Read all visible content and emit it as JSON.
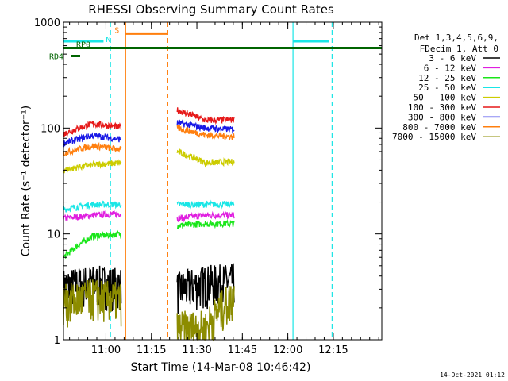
{
  "chart_data": {
    "type": "line",
    "title": "RHESSI Observing Summary Count Rates",
    "xlabel": "Start Time (14-Mar-08 10:46:42)",
    "ylabel": "Count Rate (s⁻¹ detector⁻¹)",
    "yscale": "log",
    "ylim": [
      1,
      1000
    ],
    "xlim_minutes": [
      0,
      105
    ],
    "x_ticks": [
      {
        "m": 14,
        "label": "11:00"
      },
      {
        "m": 29,
        "label": "11:15"
      },
      {
        "m": 44,
        "label": "11:30"
      },
      {
        "m": 59,
        "label": "11:45"
      },
      {
        "m": 74,
        "label": "12:00"
      },
      {
        "m": 89,
        "label": "12:15"
      }
    ],
    "y_ticks": [
      {
        "v": 1,
        "label": "1"
      },
      {
        "v": 10,
        "label": "10"
      },
      {
        "v": 100,
        "label": "100"
      },
      {
        "v": 1000,
        "label": "1000"
      }
    ],
    "legend_header": [
      "Det 1,3,4,5,6,9,",
      "FDecim 1, Att 0"
    ],
    "legend_position": "right",
    "series": [
      {
        "name": "3 - 6 keV",
        "color": "#000000",
        "a": [
          3.2,
          3.5,
          3.3
        ],
        "b": [
          3.0,
          3.5,
          3.6
        ]
      },
      {
        "name": "6 - 12 keV",
        "color": "#e01ee0",
        "a": [
          14,
          15,
          15.5
        ],
        "b": [
          14,
          15,
          15
        ]
      },
      {
        "name": "12 - 25 keV",
        "color": "#19e619",
        "a": [
          6,
          9.5,
          10
        ],
        "b": [
          12,
          12.5,
          12.5
        ]
      },
      {
        "name": "25 - 50 keV",
        "color": "#19e6e6",
        "a": [
          17,
          19,
          19
        ],
        "b": [
          19,
          19,
          19
        ]
      },
      {
        "name": "50 - 100 keV",
        "color": "#cccc00",
        "a": [
          40,
          45,
          47
        ],
        "b": [
          60,
          47,
          48
        ]
      },
      {
        "name": "100 - 300 keV",
        "color": "#e61919",
        "a": [
          88,
          110,
          102
        ],
        "b": [
          148,
          118,
          120
        ]
      },
      {
        "name": "300 - 800 keV",
        "color": "#1919e6",
        "a": [
          72,
          85,
          78
        ],
        "b": [
          112,
          100,
          97
        ]
      },
      {
        "name": "800 - 7000 keV",
        "color": "#ff7f0e",
        "a": [
          58,
          68,
          63
        ],
        "b": [
          100,
          86,
          83
        ]
      },
      {
        "name": "7000 - 15000 keV",
        "color": "#8c8c00",
        "a": [
          2.3,
          2.6,
          2.4
        ],
        "b": [
          1.3,
          1.3,
          2.6
        ]
      }
    ],
    "segments_minutes": {
      "a": [
        0,
        19
      ],
      "b": [
        37.5,
        56.3
      ]
    },
    "flags": {
      "saa": {
        "label": "S",
        "color": "#ff7f0e",
        "x": [
          20.5,
          34.4
        ],
        "y": 780
      },
      "night": {
        "label": "N",
        "color": "#19e6e6",
        "x": [
          [
            0,
            13.2
          ],
          [
            75.7,
            87.7
          ]
        ],
        "y": 660
      },
      "rp0": {
        "label": "RP0",
        "color": "#006400",
        "x": [
          0,
          105
        ],
        "y": 570
      },
      "rd4": {
        "label": "RD4",
        "color": "#006400",
        "x": [
          2.5,
          5.5
        ],
        "y": 480
      }
    },
    "vlines": [
      {
        "m": 15.5,
        "color": "#19e6e6",
        "style": "dashed"
      },
      {
        "m": 20.5,
        "color": "#ff7f0e",
        "style": "solid"
      },
      {
        "m": 34.4,
        "color": "#ff7f0e",
        "style": "dashed"
      },
      {
        "m": 75.7,
        "color": "#19e6e6",
        "style": "solid"
      },
      {
        "m": 88.6,
        "color": "#19e6e6",
        "style": "dashed"
      }
    ]
  },
  "footer_date": "14-Oct-2021 01:12"
}
